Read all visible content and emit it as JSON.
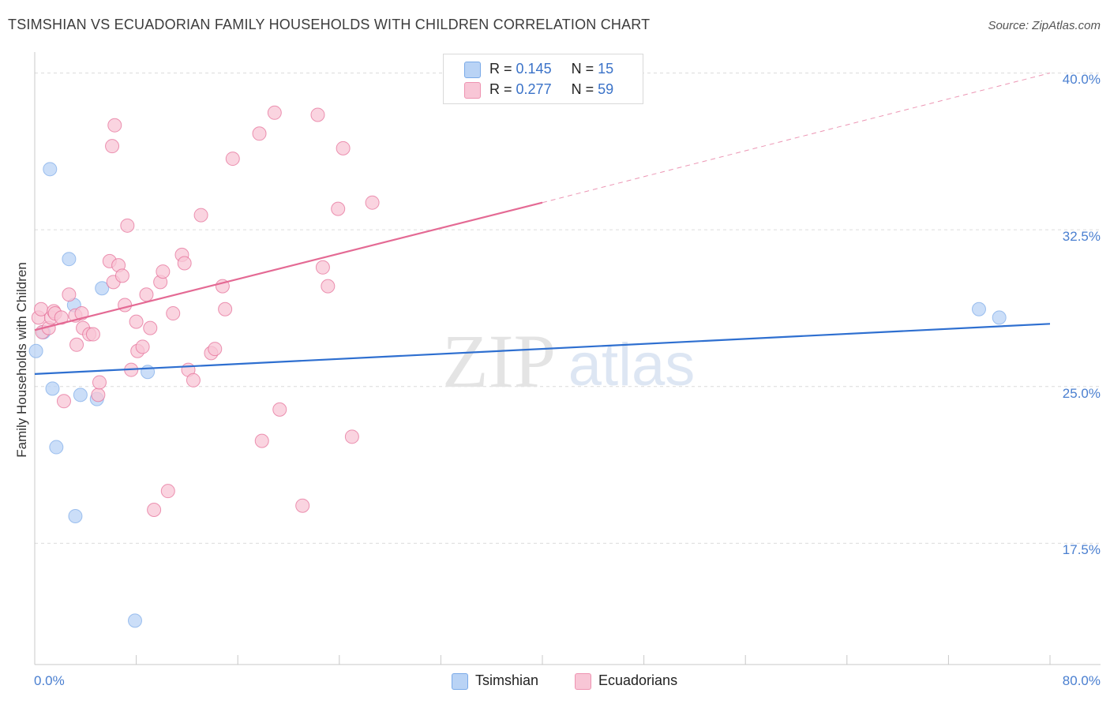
{
  "title": "TSIMSHIAN VS ECUADORIAN FAMILY HOUSEHOLDS WITH CHILDREN CORRELATION CHART",
  "source": "Source: ZipAtlas.com",
  "watermark": {
    "zip": "ZIP",
    "atlas": "atlas"
  },
  "legend": {
    "series": [
      {
        "name": "Tsimshian",
        "r_label": "R =",
        "r_value": "0.145",
        "n_label": "N =",
        "n_value": "15",
        "fill": "#b9d3f5",
        "stroke": "#7aaae8"
      },
      {
        "name": "Ecuadorians",
        "r_label": "R =",
        "r_value": "0.277",
        "n_label": "N =",
        "n_value": "59",
        "fill": "#f8c6d6",
        "stroke": "#ee93b1"
      }
    ]
  },
  "chart_data": {
    "type": "scatter",
    "title": "TSIMSHIAN VS ECUADORIAN FAMILY HOUSEHOLDS WITH CHILDREN CORRELATION CHART",
    "xlabel": "",
    "ylabel": "Family Households with Children",
    "xlim": [
      0,
      80
    ],
    "ylim": [
      11.7,
      41.0
    ],
    "x_tick_labels": [
      "0.0%",
      "80.0%"
    ],
    "y_ticks": [
      17.5,
      25.0,
      32.5,
      40.0
    ],
    "y_tick_labels": [
      "17.5%",
      "25.0%",
      "32.5%",
      "40.0%"
    ],
    "grid": true,
    "series": [
      {
        "name": "Tsimshian",
        "color": "#7aaae8",
        "fill": "#b9d3f5",
        "points": [
          [
            0.1,
            26.7
          ],
          [
            0.7,
            27.6
          ],
          [
            1.2,
            35.4
          ],
          [
            1.4,
            24.9
          ],
          [
            1.7,
            22.1
          ],
          [
            2.7,
            31.1
          ],
          [
            3.1,
            28.9
          ],
          [
            3.2,
            18.8
          ],
          [
            3.6,
            24.6
          ],
          [
            4.9,
            24.4
          ],
          [
            5.3,
            29.7
          ],
          [
            7.9,
            13.8
          ],
          [
            8.9,
            25.7
          ],
          [
            74.4,
            28.7
          ],
          [
            76.0,
            28.3
          ]
        ],
        "trend": {
          "x": [
            0,
            80
          ],
          "y": [
            25.6,
            28.0
          ],
          "dashed_extension": false
        }
      },
      {
        "name": "Ecuadorians",
        "color": "#e46a94",
        "fill": "#f8c6d6",
        "points": [
          [
            0.3,
            28.3
          ],
          [
            0.5,
            28.7
          ],
          [
            0.6,
            27.6
          ],
          [
            1.1,
            27.8
          ],
          [
            1.3,
            28.3
          ],
          [
            1.5,
            28.6
          ],
          [
            1.6,
            28.5
          ],
          [
            2.1,
            28.3
          ],
          [
            2.3,
            24.3
          ],
          [
            2.7,
            29.4
          ],
          [
            3.2,
            28.4
          ],
          [
            3.3,
            27.0
          ],
          [
            3.7,
            28.5
          ],
          [
            3.8,
            27.8
          ],
          [
            4.3,
            27.5
          ],
          [
            4.6,
            27.5
          ],
          [
            5.0,
            24.6
          ],
          [
            5.1,
            25.2
          ],
          [
            5.9,
            31.0
          ],
          [
            6.2,
            30.0
          ],
          [
            6.1,
            36.5
          ],
          [
            6.3,
            37.5
          ],
          [
            6.6,
            30.8
          ],
          [
            6.9,
            30.3
          ],
          [
            7.1,
            28.9
          ],
          [
            7.3,
            32.7
          ],
          [
            7.6,
            25.8
          ],
          [
            8.0,
            28.1
          ],
          [
            8.1,
            26.7
          ],
          [
            8.5,
            26.9
          ],
          [
            8.8,
            29.4
          ],
          [
            9.1,
            27.8
          ],
          [
            9.4,
            19.1
          ],
          [
            9.9,
            30.0
          ],
          [
            10.1,
            30.5
          ],
          [
            10.5,
            20.0
          ],
          [
            10.9,
            28.5
          ],
          [
            11.6,
            31.3
          ],
          [
            11.8,
            30.9
          ],
          [
            12.1,
            25.8
          ],
          [
            12.5,
            25.3
          ],
          [
            13.1,
            33.2
          ],
          [
            13.9,
            26.6
          ],
          [
            14.2,
            26.8
          ],
          [
            14.8,
            29.8
          ],
          [
            15.0,
            28.7
          ],
          [
            15.6,
            35.9
          ],
          [
            17.7,
            37.1
          ],
          [
            17.9,
            22.4
          ],
          [
            18.9,
            38.1
          ],
          [
            19.3,
            23.9
          ],
          [
            21.1,
            19.3
          ],
          [
            22.3,
            38.0
          ],
          [
            22.7,
            30.7
          ],
          [
            23.1,
            29.8
          ],
          [
            23.9,
            33.5
          ],
          [
            24.3,
            36.4
          ],
          [
            25.0,
            22.6
          ],
          [
            26.6,
            33.8
          ]
        ],
        "trend": {
          "x": [
            0,
            40,
            80
          ],
          "y": [
            27.7,
            33.8,
            40.0
          ],
          "dashed_extension": true
        }
      }
    ]
  },
  "colors": {
    "grid": "#dcdcdc",
    "axis": "#c8c8c8",
    "tick_text": "#4a7fd0",
    "blue_line": "#2e6fd0",
    "pink_line": "#e46a94"
  }
}
